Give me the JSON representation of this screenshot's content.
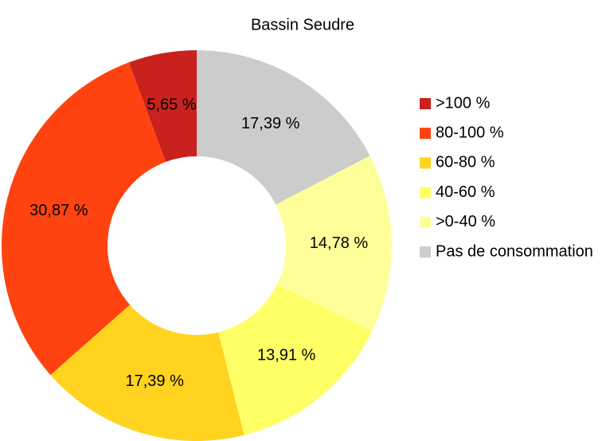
{
  "chart_data": {
    "type": "donut",
    "title": "Bassin Seudre",
    "categories": [
      ">100 %",
      "80-100 %",
      "60-80 %",
      "40-60 %",
      ">0-40 %",
      "Pas de consommation"
    ],
    "values": [
      5.65,
      30.87,
      17.39,
      13.91,
      14.78,
      17.39
    ],
    "value_labels": [
      "5,65 %",
      "30,87 %",
      "17,39 %",
      "13,91 %",
      "14,78 %",
      "17,39 %"
    ],
    "colors": [
      "#c9211e",
      "#ff4310",
      "#ffd320",
      "#ffff66",
      "#ffff99",
      "#cccccc"
    ],
    "legend": "right"
  }
}
